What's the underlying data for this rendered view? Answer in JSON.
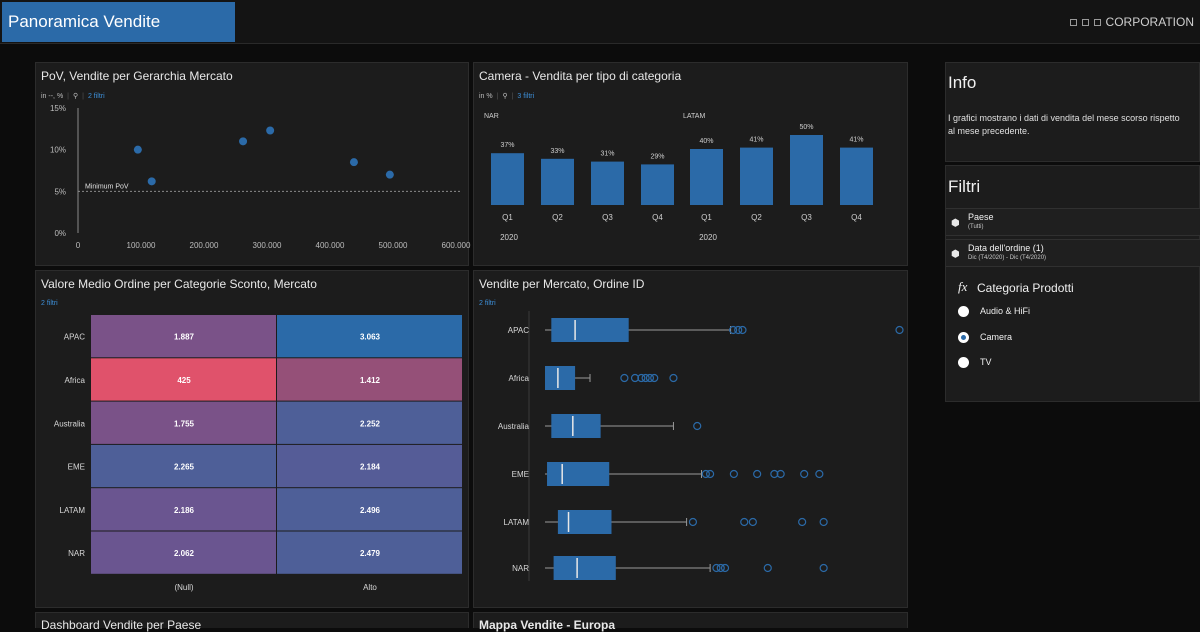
{
  "header": {
    "title": "Panoramica Vendite",
    "corporation": "CORPORATION"
  },
  "panels": {
    "pov": {
      "title": "PoV, Vendite per Gerarchia Mercato",
      "unit": "in --, %",
      "filters": "2 filtri"
    },
    "camera": {
      "title": "Camera - Vendita per tipo di categoria",
      "unit": "in %",
      "filters": "3 filtri"
    },
    "avg_order": {
      "title": "Valore Medio Ordine per Categorie Sconto, Mercato",
      "filters": "2 filtri"
    },
    "boxplot": {
      "title": "Vendite per Mercato, Ordine ID",
      "filters": "2 filtri"
    },
    "country": {
      "title": "Dashboard Vendite per Paese"
    },
    "map": {
      "title": "Mappa Vendite - Europa"
    }
  },
  "sidebar": {
    "info_title": "Info",
    "info_text": "I grafici mostrano i dati di vendita del mese scorso rispetto al mese precedente.",
    "filters_title": "Filtri",
    "filters": [
      {
        "name": "Paese",
        "value": "(Tutti)"
      },
      {
        "name": "Data dell'ordine (1)",
        "value": "Dic (T4/2020) - Dic (T4/2020)"
      }
    ],
    "category_title": "Categoria Prodotti",
    "options": [
      {
        "label": "Audio & HiFi",
        "selected": false
      },
      {
        "label": "Camera",
        "selected": true
      },
      {
        "label": "TV",
        "selected": false
      }
    ]
  },
  "chart_data": [
    {
      "type": "scatter",
      "title": "PoV, Vendite per Gerarchia Mercato",
      "x_ticks": [
        "0",
        "100.000",
        "200.000",
        "300.000",
        "400.000",
        "500.000",
        "600.000"
      ],
      "y_ticks": [
        "0%",
        "5%",
        "10%",
        "15%"
      ],
      "xlim": [
        0,
        600000
      ],
      "ylim": [
        0,
        15
      ],
      "points": [
        {
          "x": 95000,
          "y": 10.0
        },
        {
          "x": 117000,
          "y": 6.2
        },
        {
          "x": 262000,
          "y": 11.0
        },
        {
          "x": 305000,
          "y": 12.3
        },
        {
          "x": 438000,
          "y": 8.5
        },
        {
          "x": 495000,
          "y": 7.0
        }
      ],
      "reference_line": {
        "label": "Minimum PoV",
        "y": 5
      },
      "color": "#2b6aa8"
    },
    {
      "type": "bar",
      "title": "Camera - Vendita per tipo di categoria",
      "groups": [
        {
          "name": "NAR",
          "year": "2020",
          "categories": [
            "Q1",
            "Q2",
            "Q3",
            "Q4"
          ],
          "values": [
            37,
            33,
            31,
            29
          ]
        },
        {
          "name": "LATAM",
          "year": "2020",
          "categories": [
            "Q1",
            "Q2",
            "Q3",
            "Q4"
          ],
          "values": [
            40,
            41,
            50,
            41
          ]
        }
      ],
      "ylim": [
        0,
        50
      ],
      "color": "#2b6aa8"
    },
    {
      "type": "heatmap",
      "title": "Valore Medio Ordine per Categorie Sconto, Mercato",
      "rows": [
        "APAC",
        "Africa",
        "Australia",
        "EME",
        "LATAM",
        "NAR"
      ],
      "columns": [
        "(Null)",
        "Alto"
      ],
      "values": [
        [
          "1.887",
          "3.063"
        ],
        [
          "425",
          "1.412"
        ],
        [
          "1.755",
          "2.252"
        ],
        [
          "2.265",
          "2.184"
        ],
        [
          "2.186",
          "2.496"
        ],
        [
          "2.062",
          "2.479"
        ]
      ],
      "colors": [
        [
          "#7a5288",
          "#2b6aa8"
        ],
        [
          "#e0526b",
          "#955078"
        ],
        [
          "#7a5288",
          "#4e5f98"
        ],
        [
          "#4e5f98",
          "#555c97"
        ],
        [
          "#6a5590",
          "#4e5f98"
        ],
        [
          "#6a5590",
          "#4e5f98"
        ]
      ]
    },
    {
      "type": "boxplot",
      "title": "Vendite per Mercato, Ordine ID",
      "rows": [
        "APAC",
        "Africa",
        "Australia",
        "EME",
        "LATAM",
        "NAR"
      ],
      "boxes": [
        {
          "wmin": 0.0,
          "q1": 0.025,
          "median": 0.119,
          "q3": 0.331,
          "wmax": 0.734,
          "outliers": [
            0.744,
            0.764,
            0.781,
            1.402
          ]
        },
        {
          "wmin": 0.0,
          "q1": 0.0,
          "median": 0.051,
          "q3": 0.119,
          "wmax": 0.178,
          "outliers": [
            0.314,
            0.356,
            0.381,
            0.398,
            0.415,
            0.432,
            0.508
          ]
        },
        {
          "wmin": 0.0,
          "q1": 0.025,
          "median": 0.11,
          "q3": 0.22,
          "wmax": 0.508,
          "outliers": [
            0.602
          ]
        },
        {
          "wmin": 0.0,
          "q1": 0.008,
          "median": 0.068,
          "q3": 0.254,
          "wmax": 0.619,
          "outliers": [
            0.636,
            0.653,
            0.747,
            0.839,
            0.907,
            0.932,
            1.025,
            1.085
          ]
        },
        {
          "wmin": 0.0,
          "q1": 0.051,
          "median": 0.093,
          "q3": 0.263,
          "wmax": 0.56,
          "outliers": [
            0.585,
            0.788,
            0.822,
            1.017,
            1.102
          ]
        },
        {
          "wmin": 0.0,
          "q1": 0.034,
          "median": 0.127,
          "q3": 0.28,
          "wmax": 0.653,
          "outliers": [
            0.678,
            0.695,
            0.712,
            0.881,
            1.102
          ]
        }
      ],
      "color": "#2b6aa8"
    }
  ]
}
